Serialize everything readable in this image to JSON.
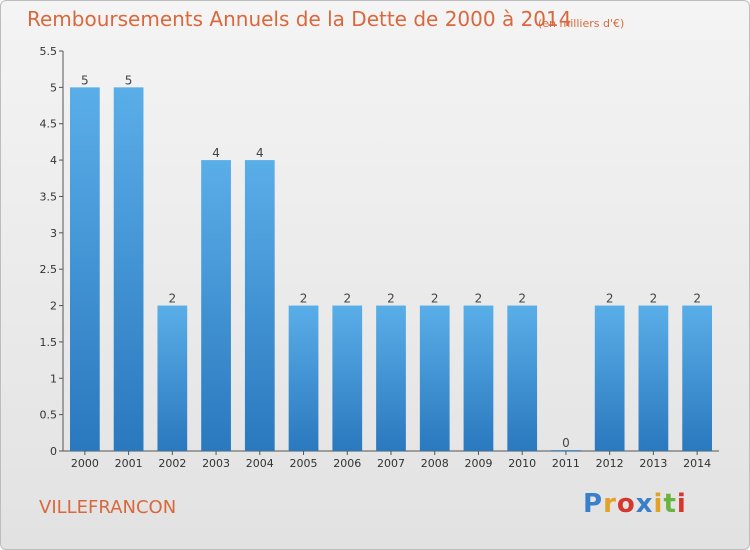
{
  "chart_data": {
    "type": "bar",
    "title": "Remboursements Annuels de la Dette de 2000 à 2014",
    "unit": "(en milliers d'€)",
    "xlabel": "",
    "ylabel": "",
    "categories": [
      "2000",
      "2001",
      "2002",
      "2003",
      "2004",
      "2005",
      "2006",
      "2007",
      "2008",
      "2009",
      "2010",
      "2011",
      "2012",
      "2013",
      "2014"
    ],
    "values": [
      5,
      5,
      2,
      4,
      4,
      2,
      2,
      2,
      2,
      2,
      2,
      0,
      2,
      2,
      2
    ],
    "data_labels": [
      "5",
      "5",
      "2",
      "4",
      "4",
      "2",
      "2",
      "2",
      "2",
      "2",
      "2",
      "0",
      "2",
      "2",
      "2"
    ],
    "ylim": [
      0,
      5.5
    ],
    "yticks": [
      0,
      0.5,
      1,
      1.5,
      2,
      2.5,
      3,
      3.5,
      4,
      4.5,
      5,
      5.5
    ],
    "ytick_labels": [
      "0",
      "0.5",
      "1",
      "1.5",
      "2",
      "2.5",
      "3",
      "3.5",
      "4",
      "4.5",
      "5",
      "5.5"
    ],
    "grid": false,
    "legend": "none",
    "bar_color": "#3d8fd6"
  },
  "commune": "VILLEFRANCON",
  "brand": {
    "letters": [
      "P",
      "r",
      "o",
      "x",
      "i",
      "t",
      "i"
    ],
    "colors": [
      "#3a7fc9",
      "#e2a22a",
      "#d6372d",
      "#3a7fc9",
      "#e2a22a",
      "#6bb33f",
      "#d6372d"
    ]
  }
}
